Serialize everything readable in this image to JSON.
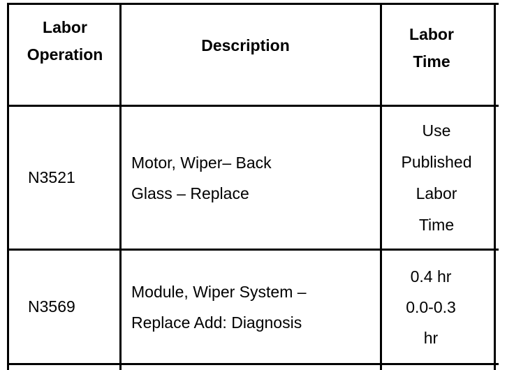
{
  "table": {
    "headers": {
      "operation": [
        "Labor",
        "Operation"
      ],
      "description": "Description",
      "time": [
        "Labor",
        "Time"
      ]
    },
    "rows": [
      {
        "operation": "N3521",
        "description": [
          "Motor, Wiper– Back",
          "Glass – Replace"
        ],
        "time": [
          "Use",
          "Published",
          "Labor",
          "Time"
        ]
      },
      {
        "operation": "N3569",
        "description": [
          "Module, Wiper System –",
          "Replace Add: Diagnosis"
        ],
        "time": [
          "0.4 hr",
          "0.0-0.3",
          "hr"
        ]
      }
    ]
  }
}
